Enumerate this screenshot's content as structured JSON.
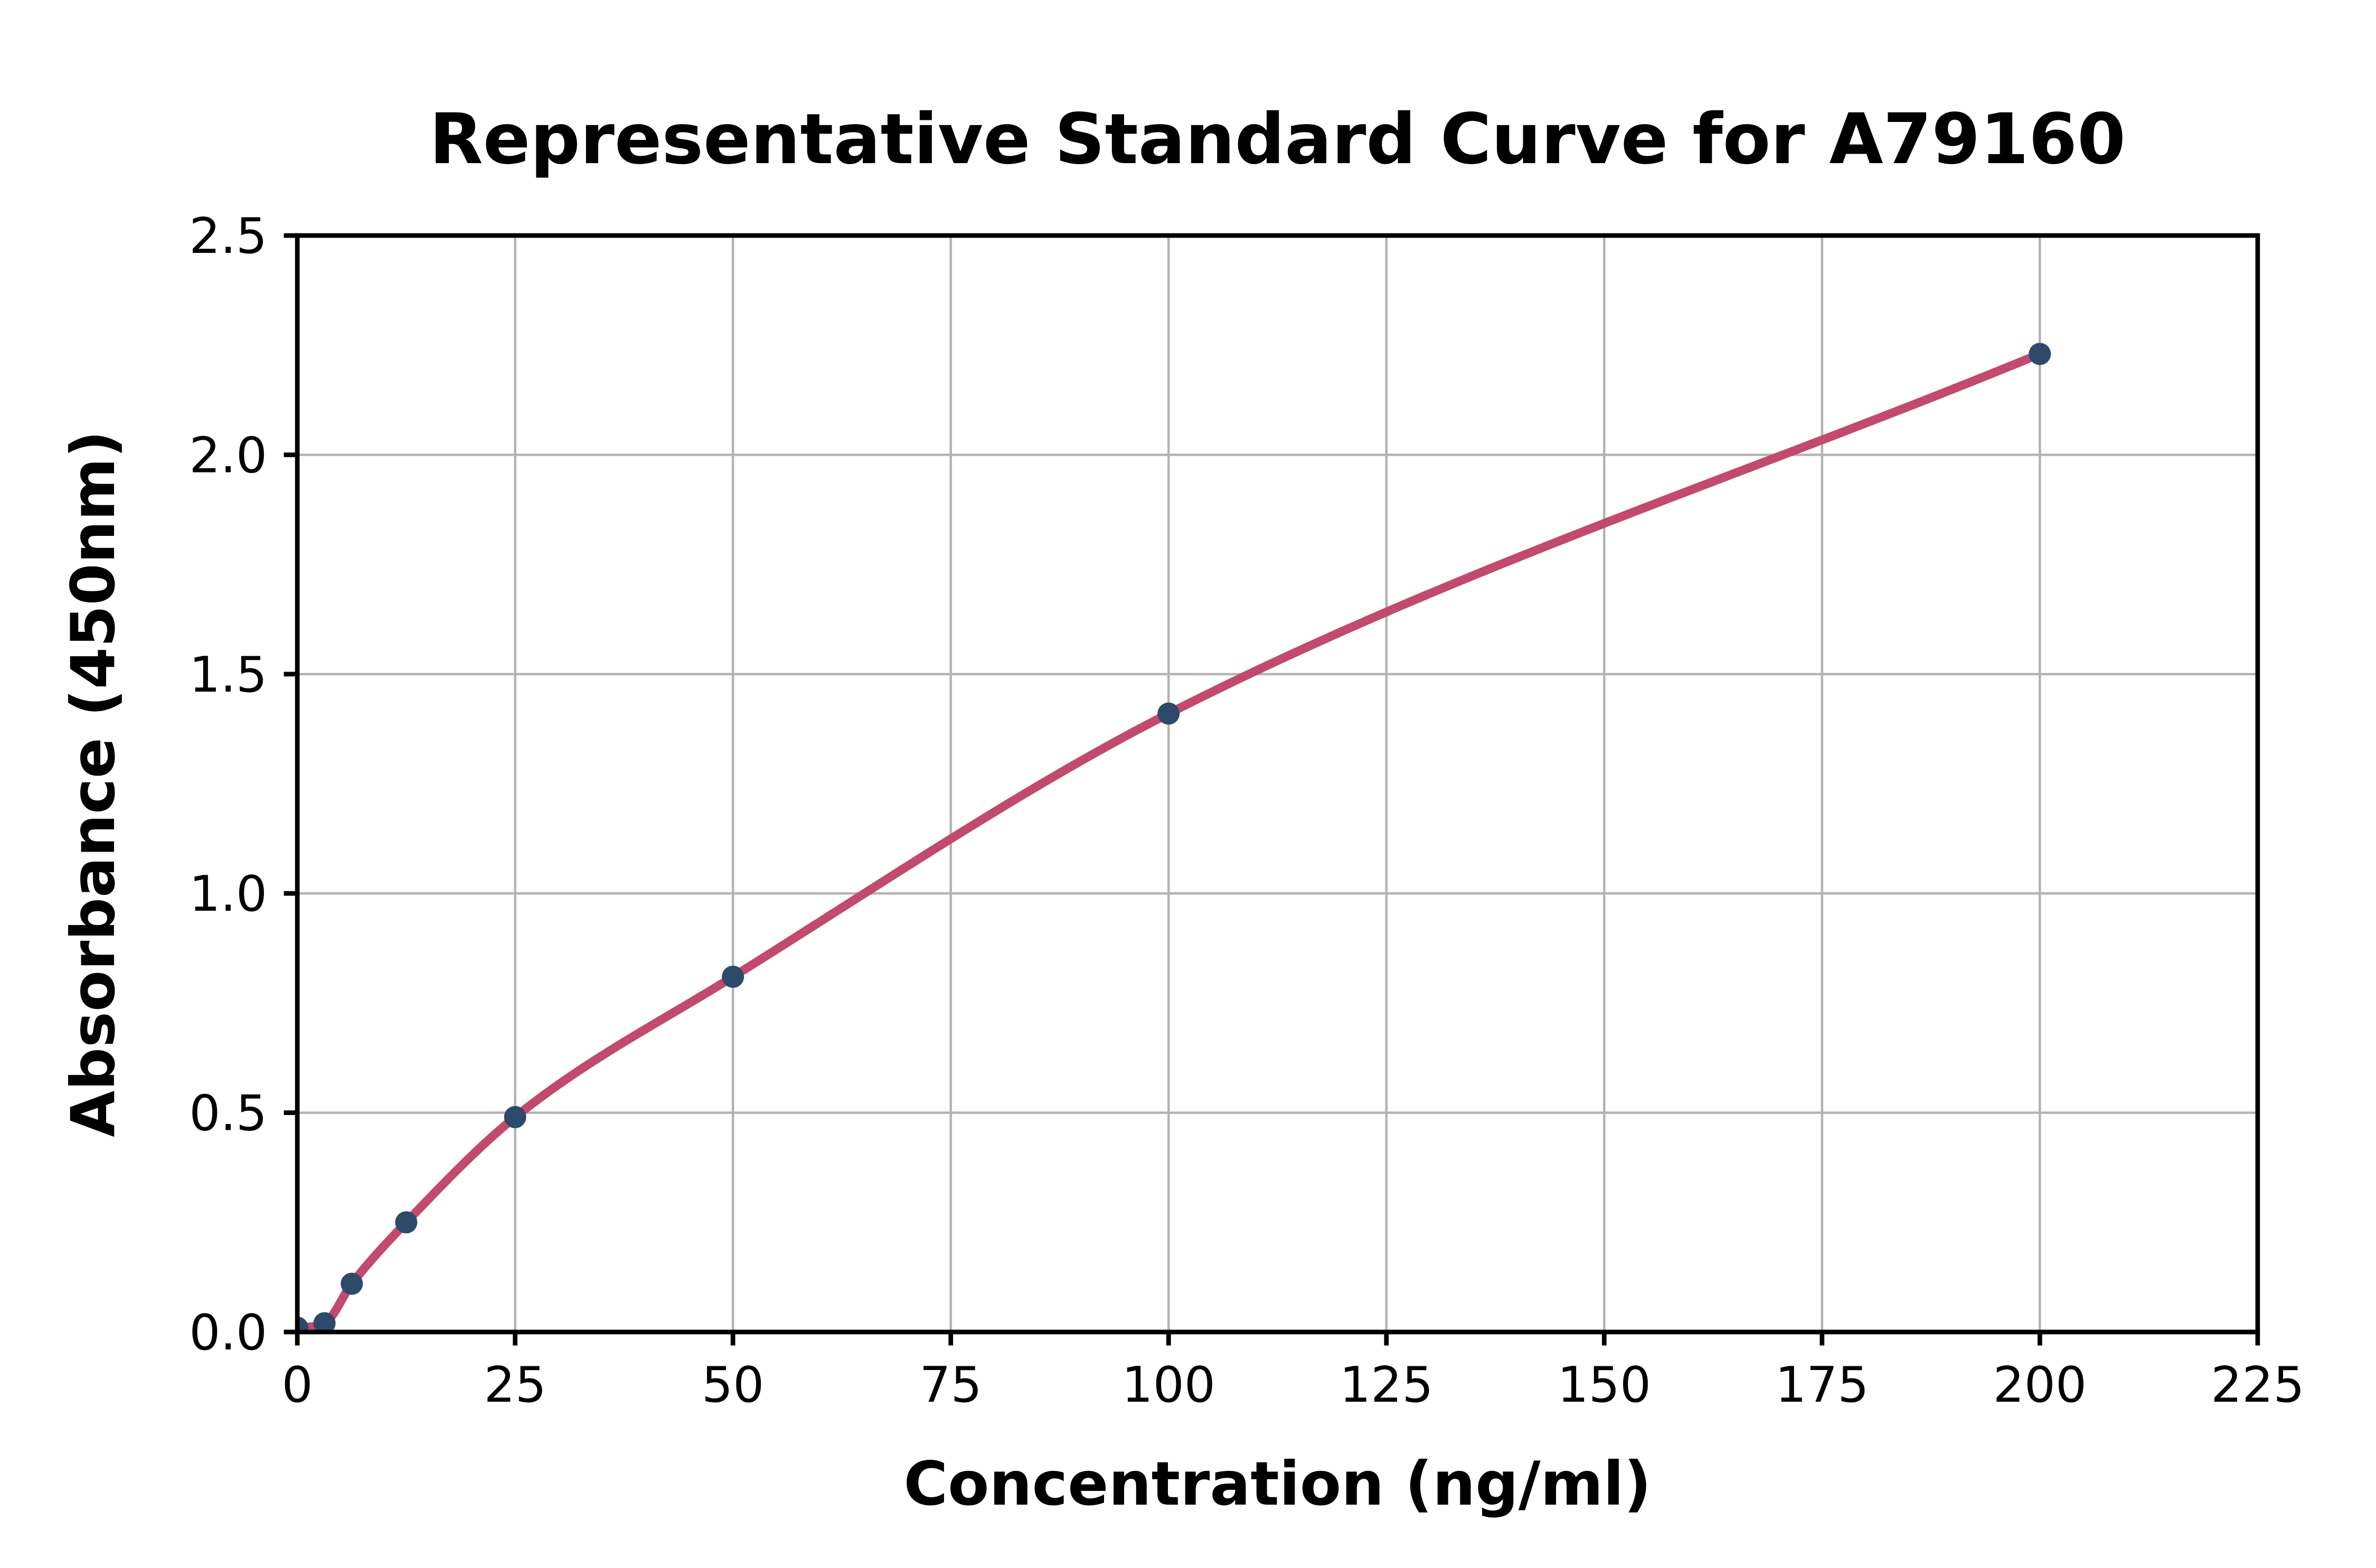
{
  "chart_data": {
    "type": "scatter",
    "title": "Representative Standard Curve for A79160",
    "xlabel": "Concentration (ng/ml)",
    "ylabel": "Absorbance (450nm)",
    "xlim": [
      0,
      225
    ],
    "ylim": [
      0,
      2.5
    ],
    "grid": true,
    "legend": "none",
    "xticks": [
      {
        "value": 0,
        "label": "0"
      },
      {
        "value": 25,
        "label": "25"
      },
      {
        "value": 50,
        "label": "50"
      },
      {
        "value": 75,
        "label": "75"
      },
      {
        "value": 100,
        "label": "100"
      },
      {
        "value": 125,
        "label": "125"
      },
      {
        "value": 150,
        "label": "150"
      },
      {
        "value": 175,
        "label": "175"
      },
      {
        "value": 200,
        "label": "200"
      },
      {
        "value": 225,
        "label": "225"
      }
    ],
    "yticks": [
      {
        "value": 0.0,
        "label": "0.0"
      },
      {
        "value": 0.5,
        "label": "0.5"
      },
      {
        "value": 1.0,
        "label": "1.0"
      },
      {
        "value": 1.5,
        "label": "1.5"
      },
      {
        "value": 2.0,
        "label": "2.0"
      },
      {
        "value": 2.5,
        "label": "2.5"
      }
    ],
    "series": [
      {
        "name": "standard-points",
        "type": "scatter",
        "color": "#2d4a6b",
        "points": [
          {
            "x": 0,
            "y": 0.01
          },
          {
            "x": 3.12,
            "y": 0.02
          },
          {
            "x": 6.25,
            "y": 0.11
          },
          {
            "x": 12.5,
            "y": 0.25
          },
          {
            "x": 25,
            "y": 0.49
          },
          {
            "x": 50,
            "y": 0.81
          },
          {
            "x": 100,
            "y": 1.41
          },
          {
            "x": 200,
            "y": 2.23
          }
        ]
      },
      {
        "name": "fitted-curve",
        "type": "line",
        "color": "#c14a6e",
        "through_series": "standard-points"
      }
    ]
  },
  "style": {
    "background_color": "#ffffff",
    "text_color": "#000000",
    "grid_color": "#b3b3b3",
    "spine_color": "#000000",
    "marker_color": "#2d4a6b",
    "curve_color": "#c14a6e"
  }
}
